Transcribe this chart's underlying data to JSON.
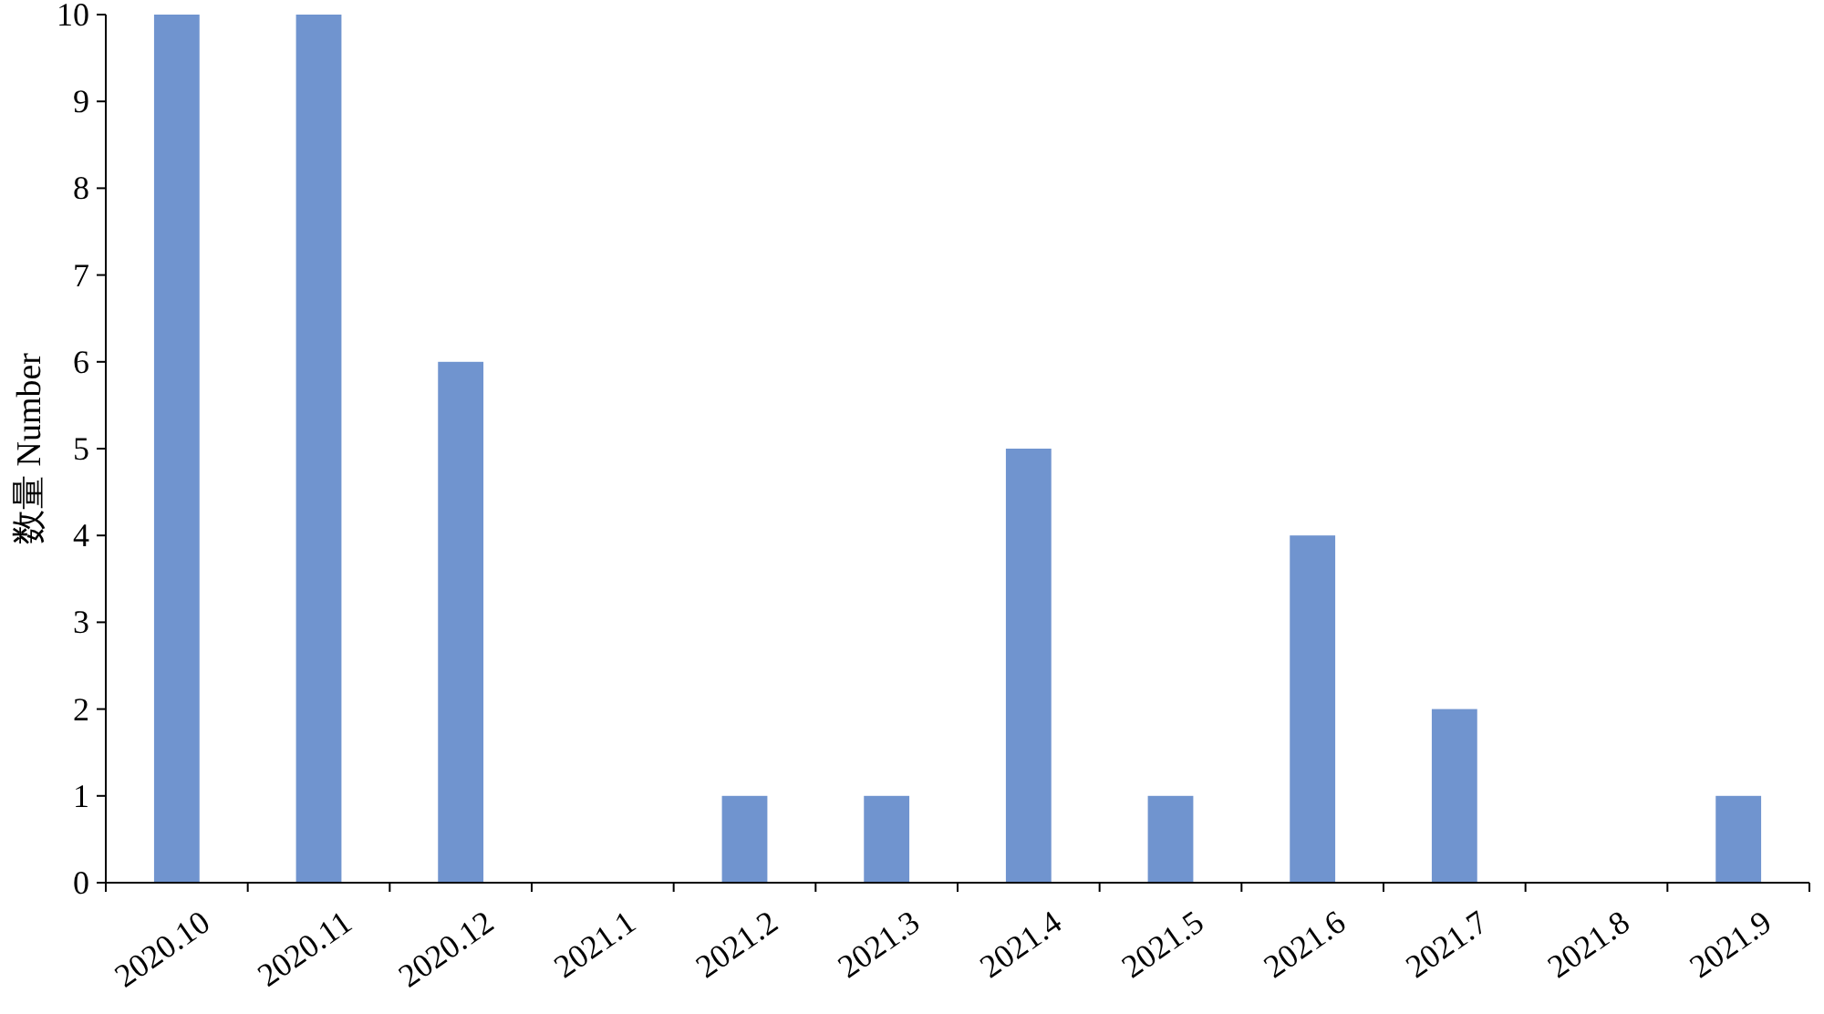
{
  "chart_data": {
    "type": "bar",
    "ylabel": "数量 Number",
    "categories": [
      "2020.10",
      "2020.11",
      "2020.12",
      "2021.1",
      "2021.2",
      "2021.3",
      "2021.4",
      "2021.5",
      "2021.6",
      "2021.7",
      "2021.8",
      "2021.9"
    ],
    "values": [
      10,
      10,
      6,
      0,
      1,
      1,
      5,
      1,
      4,
      2,
      0,
      1
    ],
    "color": "#7094cf",
    "ylim": [
      0,
      10
    ],
    "yticks": [
      0,
      1,
      2,
      3,
      4,
      5,
      6,
      7,
      8,
      9,
      10
    ]
  }
}
